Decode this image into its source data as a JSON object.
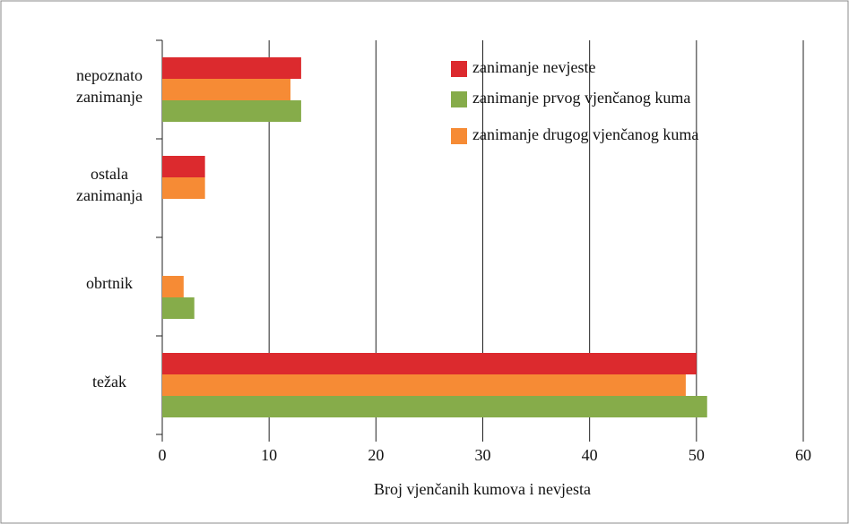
{
  "chart_data": {
    "type": "bar",
    "orientation": "horizontal",
    "x_label": "Broj vjenčanih kumova i nevjesta",
    "categories": [
      "nepoznato zanimanje",
      "ostala zanimanja",
      "obrtnik",
      "težak"
    ],
    "series": [
      {
        "name": "zanimanje nevjeste",
        "color": "#dc2a2e",
        "values": [
          13,
          4,
          0,
          50
        ]
      },
      {
        "name": "zanimanje prvog vjenčanog kuma",
        "color": "#86ac4a",
        "values": [
          13,
          0,
          3,
          51
        ]
      },
      {
        "name": "zanimanje drugog vjenčanog kuma",
        "color": "#f68b35",
        "values": [
          12,
          4,
          2,
          49
        ]
      }
    ],
    "xlim": [
      0,
      60
    ],
    "xticks": [
      0,
      10,
      20,
      30,
      40,
      50,
      60
    ],
    "grid": true,
    "legend": "upper right"
  }
}
